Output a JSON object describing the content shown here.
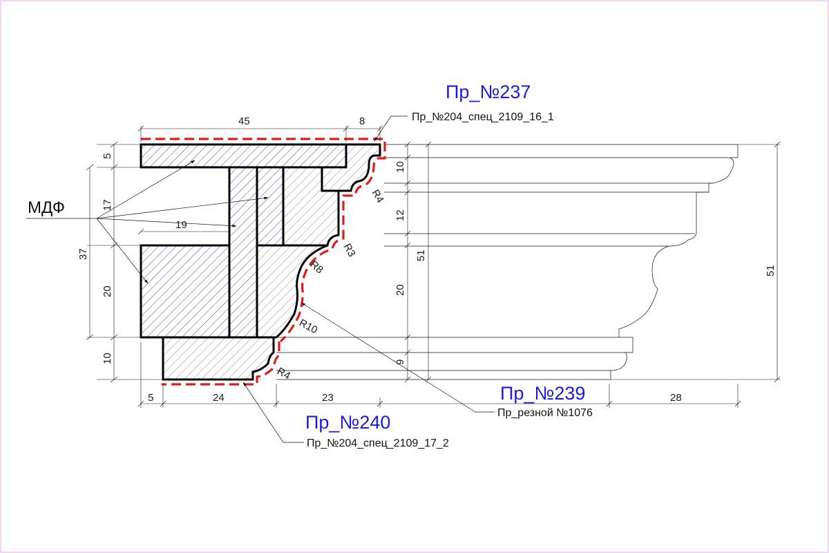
{
  "labels": {
    "profile_237": "Пр_№237",
    "profile_239": "Пр_№239",
    "profile_240": "Пр_№240",
    "callout_top": "Пр_№204_спец_2109_16_1",
    "callout_middle": "Пр_резной №1076",
    "callout_bottom": "Пр_№204_спец_2109_17_2",
    "material": "МДФ"
  },
  "dimensions": {
    "top_width": "45",
    "top_right": "8",
    "left_5": "5",
    "left_17": "17",
    "left_19": "19",
    "left_37": "37",
    "left_20": "20",
    "left_10": "10",
    "bottom_5": "5",
    "bottom_24": "24",
    "bottom_23": "23",
    "bottom_28": "28",
    "mid_10": "10",
    "mid_12": "12",
    "mid_51": "51",
    "mid_20": "20",
    "mid_9": "9",
    "right_51": "51",
    "r4_top": "R4",
    "r3": "R3",
    "r8": "R8",
    "r10": "R10",
    "r4_bottom": "R4"
  },
  "colors": {
    "frame": "#e7a8e7",
    "blue_hatch": "#2a2ad6",
    "grey_hatch": "#8a7a74",
    "red_outline": "#e21a1a",
    "blue_text": "#1a1ae6"
  }
}
